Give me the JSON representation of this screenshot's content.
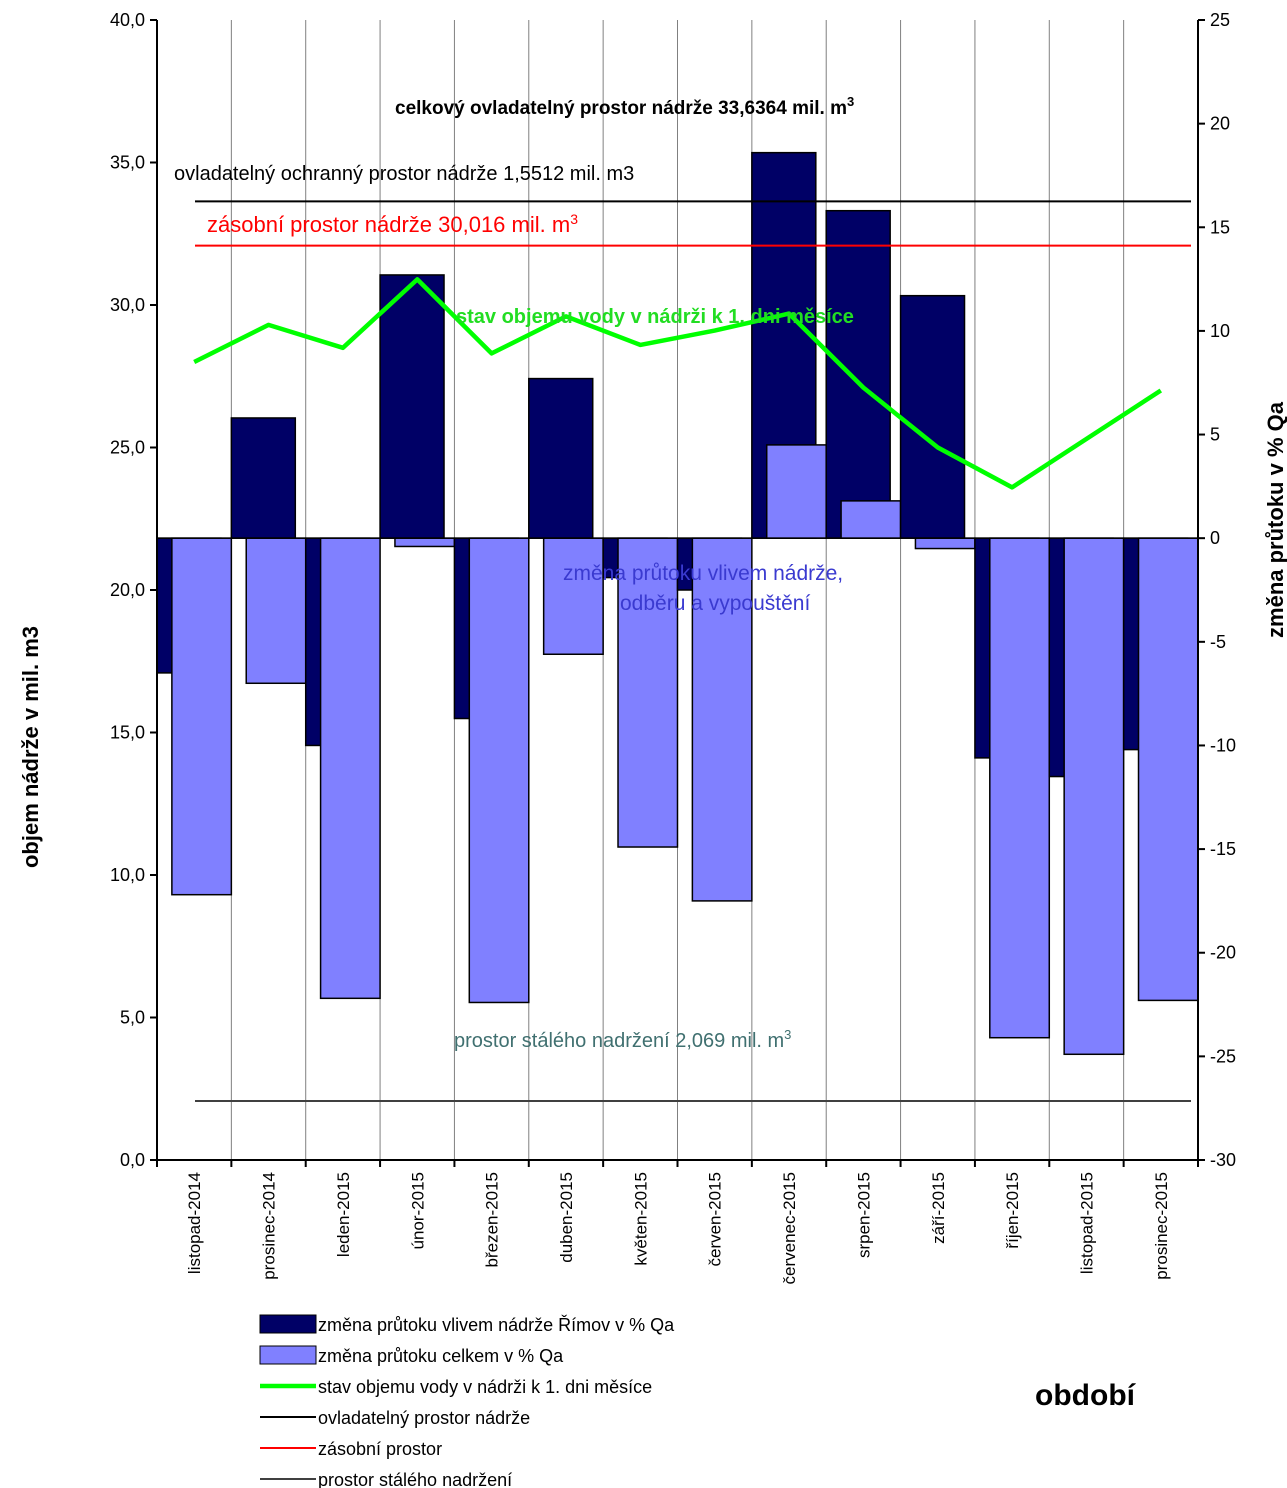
{
  "chart_data": {
    "type": "bar",
    "categories": [
      "listopad-2014",
      "prosinec-2014",
      "leden-2015",
      "únor-2015",
      "březen-2015",
      "duben-2015",
      "květen-2015",
      "červen-2015",
      "červenec-2015",
      "srpen-2015",
      "září-2015",
      "říjen-2015",
      "listopad-2015",
      "prosinec-2015"
    ],
    "series": [
      {
        "name": "změna průtoku vlivem nádrže Římov v % Qa",
        "axis": "right",
        "color": "#000066",
        "values": [
          -6.5,
          5.8,
          -10.0,
          12.7,
          -8.7,
          7.7,
          -1.9,
          -2.5,
          18.6,
          15.8,
          11.7,
          -10.6,
          -11.5,
          -10.2
        ]
      },
      {
        "name": "změna průtoku celkem v % Qa",
        "axis": "right",
        "color": "#8080ff",
        "values": [
          -17.2,
          -7.0,
          -22.2,
          -0.4,
          -22.4,
          -5.6,
          -14.9,
          -17.5,
          4.5,
          1.8,
          -0.5,
          -24.1,
          -24.9,
          -22.3
        ]
      },
      {
        "name": "stav objemu vody v nádrži k 1. dni měsíce",
        "axis": "left",
        "type": "line",
        "color": "#00ff00",
        "values": [
          28.0,
          29.3,
          28.5,
          30.9,
          28.3,
          29.6,
          28.6,
          29.1,
          29.7,
          27.1,
          25.0,
          23.6,
          25.3,
          27.0
        ]
      },
      {
        "name": "ovladatelný prostor nádrže",
        "axis": "left",
        "type": "hline",
        "color": "#000000",
        "value": 33.6364
      },
      {
        "name": "zásobní prostor",
        "axis": "left",
        "type": "hline",
        "color": "#ff0000",
        "value": 32.085
      },
      {
        "name": "prostor stálého nadržení",
        "axis": "left",
        "type": "hline",
        "color": "#404040",
        "value": 2.069
      }
    ],
    "ylabel_left": "objem nádrže v mil. m3",
    "ylabel_right": "změna průtoku v % Qa",
    "xlabel": "období",
    "ylim_left": [
      0,
      40
    ],
    "ylim_right": [
      -30,
      25
    ],
    "left_ticks": [
      "0,0",
      "5,0",
      "10,0",
      "15,0",
      "20,0",
      "25,0",
      "30,0",
      "35,0",
      "40,0"
    ],
    "right_ticks": [
      "-30",
      "-25",
      "-20",
      "-15",
      "-10",
      "-5",
      "0",
      "5",
      "10",
      "15",
      "20",
      "25"
    ],
    "grid": "vertical",
    "legend_position": "bottom",
    "annotations": {
      "total": "celkový ovladatelný prostor nádrže 33,6364 mil. m³",
      "flood": "ovladatelný ochranný prostor nádrže 1,5512  mil. m3",
      "storage": "zásobní prostor nádrže 30,016 mil. m³",
      "volume": "stav objemu vody v  nádrži k 1. dni měsíce",
      "change_line1": "změna průtoku vlivem nádrže,",
      "change_line2": "odběru a vypouštění",
      "dead": "prostor stálého nadržení 2,069 mil. m³"
    }
  }
}
